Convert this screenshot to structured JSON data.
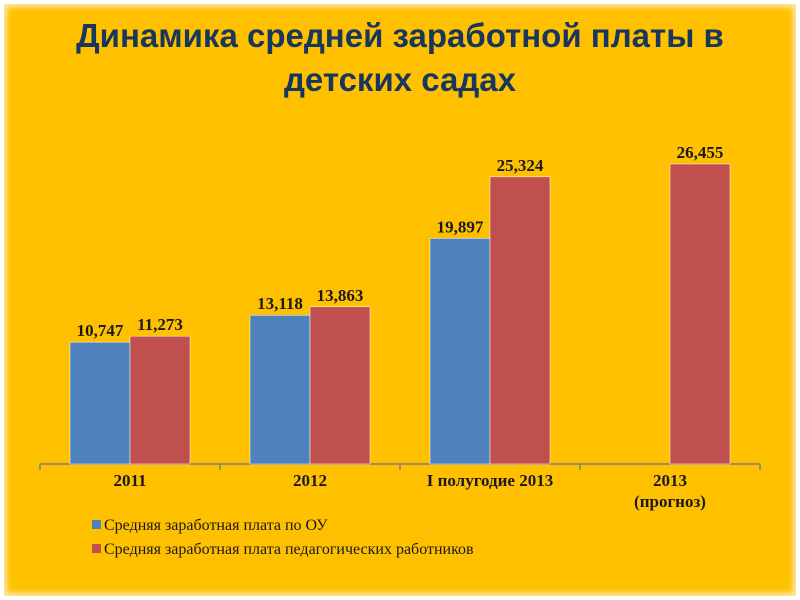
{
  "title": "Динамика средней заработной платы в детских садах",
  "chart_data": {
    "type": "bar",
    "categories": [
      [
        "2011"
      ],
      [
        "2012"
      ],
      [
        "I полугодие 2013"
      ],
      [
        "2013",
        "(прогноз)"
      ]
    ],
    "series": [
      {
        "name": "Средняя заработная плата по ОУ",
        "color": "#4f81bd",
        "values": [
          10.747,
          13.118,
          19.897,
          null
        ],
        "labels": [
          "10,747",
          "13,118",
          "19,897",
          null
        ]
      },
      {
        "name": "Средняя заработная плата педагогических работников",
        "color": "#c0504d",
        "values": [
          11.273,
          13.863,
          25.324,
          26.455
        ],
        "labels": [
          "11,273",
          "13,863",
          "25,324",
          "26,455"
        ]
      }
    ],
    "ylim": [
      0,
      30
    ],
    "grid": false,
    "legend": "bottom-left"
  }
}
